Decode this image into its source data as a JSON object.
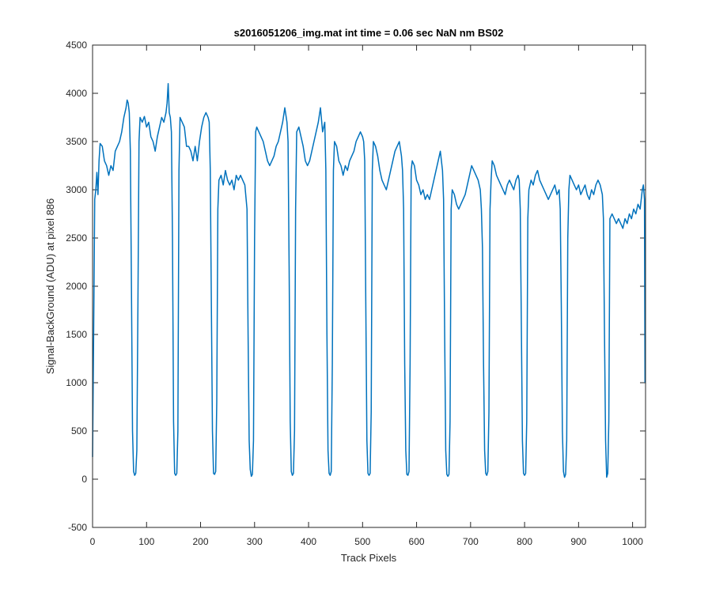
{
  "chart_data": {
    "type": "line",
    "title": "s2016051206_img.mat int time = 0.06 sec  NaN nm BS02",
    "x_label": "Track Pixels",
    "y_label": "Signal-BackGround (ADU) at pixel 886",
    "color": "#0072bd",
    "xlim": [
      0,
      1024
    ],
    "ylim": [
      -500,
      4500
    ],
    "xticks": [
      0,
      100,
      200,
      300,
      400,
      500,
      600,
      700,
      800,
      900,
      1000
    ],
    "yticks": [
      -500,
      0,
      500,
      1000,
      1500,
      2000,
      2500,
      3000,
      3500,
      4000,
      4500
    ],
    "grid": false,
    "x": [
      0,
      2,
      4,
      6,
      8,
      10,
      12,
      14,
      18,
      22,
      26,
      30,
      34,
      38,
      42,
      46,
      50,
      54,
      58,
      62,
      64,
      66,
      68,
      70,
      72,
      74,
      76,
      78,
      80,
      82,
      84,
      86,
      88,
      92,
      96,
      100,
      104,
      108,
      112,
      116,
      120,
      124,
      128,
      132,
      136,
      138,
      140,
      142,
      144,
      146,
      148,
      150,
      152,
      154,
      156,
      158,
      160,
      162,
      166,
      170,
      174,
      178,
      182,
      186,
      190,
      194,
      198,
      202,
      206,
      210,
      214,
      216,
      218,
      220,
      222,
      224,
      226,
      228,
      230,
      232,
      234,
      238,
      242,
      246,
      250,
      254,
      258,
      262,
      266,
      270,
      274,
      278,
      282,
      286,
      288,
      290,
      292,
      294,
      296,
      298,
      300,
      302,
      304,
      308,
      312,
      316,
      320,
      324,
      328,
      332,
      336,
      340,
      344,
      348,
      352,
      356,
      360,
      362,
      364,
      366,
      368,
      370,
      372,
      374,
      376,
      378,
      382,
      386,
      390,
      394,
      398,
      402,
      406,
      410,
      414,
      418,
      422,
      426,
      430,
      432,
      434,
      436,
      438,
      440,
      442,
      444,
      446,
      448,
      452,
      456,
      460,
      464,
      468,
      472,
      476,
      480,
      484,
      488,
      492,
      496,
      500,
      502,
      504,
      506,
      508,
      510,
      512,
      514,
      516,
      518,
      520,
      524,
      528,
      532,
      536,
      540,
      544,
      548,
      552,
      556,
      560,
      564,
      568,
      572,
      574,
      576,
      578,
      580,
      582,
      584,
      586,
      588,
      590,
      592,
      596,
      600,
      604,
      608,
      612,
      616,
      620,
      624,
      628,
      632,
      636,
      640,
      644,
      648,
      650,
      652,
      654,
      656,
      658,
      660,
      662,
      664,
      666,
      670,
      674,
      678,
      682,
      686,
      690,
      694,
      698,
      702,
      706,
      710,
      714,
      718,
      720,
      722,
      724,
      726,
      728,
      730,
      732,
      734,
      736,
      738,
      740,
      744,
      748,
      752,
      756,
      760,
      764,
      768,
      772,
      776,
      780,
      784,
      788,
      790,
      792,
      794,
      796,
      798,
      800,
      802,
      804,
      806,
      808,
      812,
      816,
      820,
      824,
      828,
      832,
      836,
      840,
      844,
      848,
      852,
      856,
      860,
      864,
      866,
      868,
      870,
      872,
      874,
      876,
      878,
      880,
      882,
      884,
      888,
      892,
      896,
      900,
      904,
      908,
      912,
      916,
      920,
      924,
      928,
      932,
      936,
      940,
      944,
      946,
      948,
      950,
      952,
      954,
      956,
      958,
      962,
      966,
      970,
      974,
      978,
      982,
      986,
      990,
      994,
      998,
      1002,
      1006,
      1010,
      1014,
      1018,
      1020,
      1022,
      1023
    ],
    "values": [
      230,
      1500,
      2900,
      3000,
      3180,
      2950,
      3300,
      3480,
      3450,
      3300,
      3250,
      3150,
      3250,
      3200,
      3400,
      3450,
      3500,
      3600,
      3750,
      3850,
      3930,
      3900,
      3800,
      3400,
      2000,
      500,
      80,
      40,
      60,
      300,
      1800,
      3500,
      3750,
      3700,
      3760,
      3650,
      3700,
      3550,
      3500,
      3400,
      3550,
      3650,
      3750,
      3700,
      3800,
      3900,
      4100,
      3800,
      3750,
      3600,
      2500,
      600,
      60,
      40,
      60,
      500,
      3200,
      3750,
      3700,
      3650,
      3450,
      3450,
      3400,
      3300,
      3450,
      3300,
      3500,
      3650,
      3750,
      3800,
      3750,
      3700,
      3200,
      1800,
      500,
      60,
      50,
      80,
      800,
      2800,
      3100,
      3150,
      3050,
      3200,
      3100,
      3050,
      3100,
      3000,
      3150,
      3100,
      3150,
      3100,
      3050,
      2800,
      1500,
      400,
      100,
      30,
      50,
      400,
      2500,
      3600,
      3650,
      3600,
      3550,
      3500,
      3400,
      3300,
      3250,
      3300,
      3350,
      3450,
      3500,
      3600,
      3700,
      3850,
      3700,
      3500,
      2200,
      600,
      80,
      40,
      60,
      500,
      2800,
      3600,
      3650,
      3550,
      3450,
      3300,
      3250,
      3300,
      3400,
      3500,
      3600,
      3700,
      3850,
      3600,
      3700,
      3200,
      1500,
      300,
      60,
      40,
      80,
      1200,
      3200,
      3500,
      3450,
      3300,
      3250,
      3150,
      3250,
      3200,
      3300,
      3350,
      3400,
      3500,
      3550,
      3600,
      3550,
      3500,
      3300,
      1800,
      400,
      60,
      40,
      60,
      700,
      3200,
      3500,
      3450,
      3350,
      3200,
      3100,
      3050,
      3000,
      3100,
      3200,
      3300,
      3400,
      3450,
      3500,
      3350,
      3200,
      2800,
      1200,
      300,
      50,
      40,
      80,
      1200,
      3200,
      3300,
      3250,
      3100,
      3050,
      2950,
      3000,
      2900,
      2950,
      2900,
      3000,
      3100,
      3200,
      3300,
      3400,
      3200,
      2900,
      1500,
      300,
      50,
      30,
      50,
      600,
      2800,
      3000,
      2950,
      2850,
      2800,
      2850,
      2900,
      2950,
      3050,
      3150,
      3250,
      3200,
      3150,
      3100,
      3000,
      2800,
      2400,
      1200,
      300,
      60,
      40,
      80,
      700,
      2800,
      3100,
      3300,
      3250,
      3150,
      3100,
      3050,
      3000,
      2950,
      3050,
      3100,
      3050,
      3000,
      3100,
      3150,
      3100,
      2800,
      1600,
      400,
      60,
      40,
      60,
      600,
      2700,
      3000,
      3100,
      3050,
      3150,
      3200,
      3100,
      3050,
      3000,
      2950,
      2900,
      2950,
      3000,
      3050,
      2950,
      3000,
      2800,
      1800,
      500,
      80,
      20,
      50,
      400,
      2500,
      3000,
      3150,
      3100,
      3050,
      3000,
      3050,
      2950,
      3000,
      3050,
      2950,
      2900,
      3000,
      2950,
      3050,
      3100,
      3050,
      2950,
      2700,
      1500,
      400,
      20,
      60,
      600,
      2700,
      2750,
      2700,
      2650,
      2700,
      2650,
      2600,
      2700,
      2650,
      2750,
      2700,
      2800,
      2750,
      2850,
      2800,
      3000,
      3050,
      2900,
      1000
    ]
  }
}
